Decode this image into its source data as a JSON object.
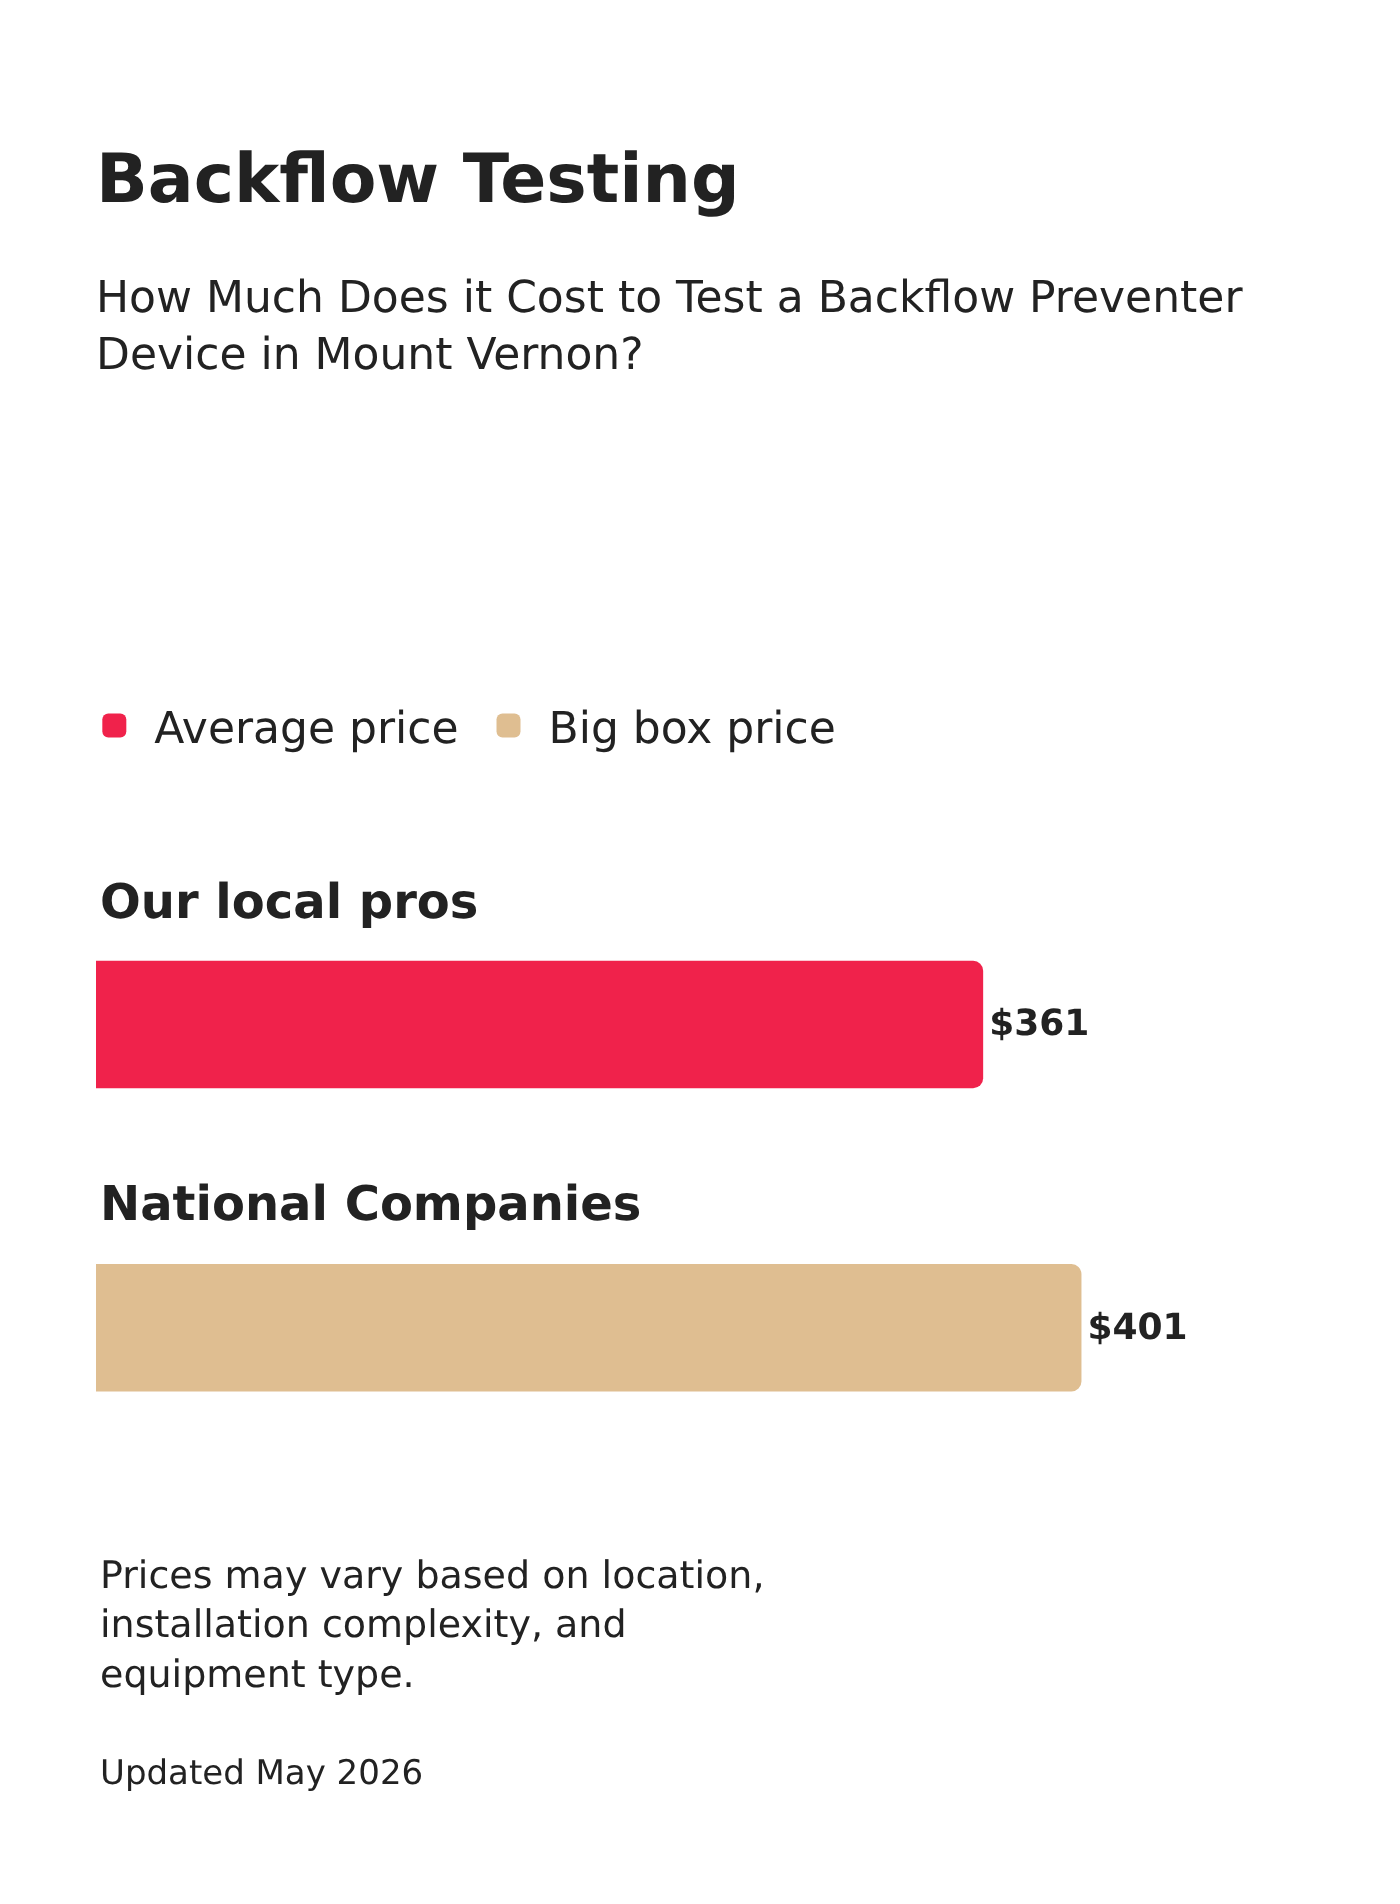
{
  "chart_data": {
    "type": "bar",
    "orientation": "horizontal",
    "title": "Backflow Testing",
    "subtitle": "How Much Does it Cost to Test a Backflow Preventer Device in Mount Vernon?",
    "categories": [
      "Our local pros",
      "National Companies"
    ],
    "series": [
      {
        "name": "Average price",
        "color": "#f0224b",
        "values": [
          361,
          null
        ],
        "value_labels": [
          "$361",
          null
        ]
      },
      {
        "name": "Big box price",
        "color": "#dfbe91",
        "values": [
          null,
          401
        ],
        "value_labels": [
          null,
          "$401"
        ]
      }
    ],
    "legend": "top",
    "annotations": [
      "Prices may vary based on location, installation complexity, and equipment type.",
      "Updated May 2026"
    ]
  }
}
